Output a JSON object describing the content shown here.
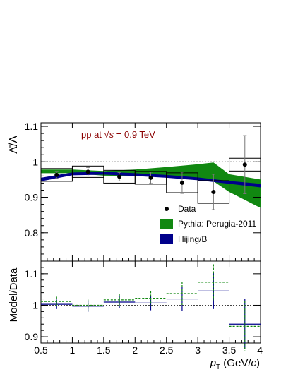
{
  "chart_data": [
    {
      "type": "scatter",
      "ylabel": "Λ̄/Λ",
      "annotation": "pp at √s = 0.9 TeV",
      "xlim": [
        0.5,
        4.0
      ],
      "ylim": [
        0.72,
        1.11
      ],
      "yticks": [
        "0.8",
        "0.9",
        "1",
        "1.1"
      ],
      "reference_line": 1.0,
      "data": {
        "name": "Data",
        "x": [
          0.75,
          1.25,
          1.75,
          2.25,
          2.75,
          3.25,
          3.75
        ],
        "y": [
          0.963,
          0.972,
          0.958,
          0.955,
          0.941,
          0.915,
          0.992
        ],
        "stat_err": [
          0.01,
          0.012,
          0.012,
          0.016,
          0.03,
          0.05,
          0.082
        ],
        "sys_err": [
          0.018,
          0.016,
          0.018,
          0.018,
          0.028,
          0.032,
          0.018
        ]
      },
      "models": [
        {
          "name": "Pythia: Perugia-2011",
          "color": "#118811",
          "x": [
            0.5,
            1.0,
            1.5,
            2.0,
            2.5,
            3.0,
            3.25,
            3.5,
            4.0
          ],
          "low": [
            0.968,
            0.968,
            0.961,
            0.96,
            0.958,
            0.95,
            0.945,
            0.915,
            0.87
          ],
          "high": [
            0.978,
            0.978,
            0.974,
            0.978,
            0.985,
            0.993,
            0.998,
            0.965,
            0.95
          ]
        },
        {
          "name": "Hijing/B",
          "color": "#00008b",
          "x": [
            0.5,
            1.0,
            1.5,
            2.0,
            2.5,
            3.0,
            3.5,
            4.0
          ],
          "low": [
            0.945,
            0.962,
            0.964,
            0.96,
            0.955,
            0.948,
            0.938,
            0.928
          ],
          "high": [
            0.955,
            0.97,
            0.972,
            0.968,
            0.963,
            0.956,
            0.946,
            0.938
          ]
        }
      ]
    },
    {
      "type": "scatter",
      "ylabel": "Model/Data",
      "xlabel": "p_T (GeV/c)",
      "xlim": [
        0.5,
        4.0
      ],
      "ylim": [
        0.88,
        1.14
      ],
      "xticks": [
        "0.5",
        "1",
        "1.5",
        "2",
        "2.5",
        "3",
        "3.5",
        "4"
      ],
      "yticks": [
        "0.9",
        "1",
        "1.1"
      ],
      "reference_line": 1.0,
      "series": [
        {
          "name": "Hijing/B",
          "color": "#00008b",
          "x": [
            0.75,
            1.25,
            1.75,
            2.25,
            2.75,
            3.25,
            3.75
          ],
          "y": [
            1.003,
            0.997,
            1.01,
            1.007,
            1.02,
            1.045,
            0.94
          ],
          "err": [
            0.015,
            0.018,
            0.02,
            0.023,
            0.038,
            0.057,
            0.08
          ]
        },
        {
          "name": "Pythia: Perugia-2011",
          "color": "#118811",
          "x": [
            0.75,
            1.25,
            1.75,
            2.25,
            2.75,
            3.25,
            3.75
          ],
          "y": [
            1.012,
            1.0,
            1.017,
            1.022,
            1.037,
            1.073,
            0.933
          ],
          "err": [
            0.015,
            0.018,
            0.02,
            0.023,
            0.038,
            0.057,
            0.08
          ]
        }
      ]
    }
  ],
  "legend": {
    "data_label": "Data",
    "pythia_label": "Pythia: Perugia-2011",
    "hijing_label": "Hijing/B"
  },
  "labels": {
    "annotation_prefix": "pp at ",
    "annotation_sqrt": "√",
    "annotation_s": "s",
    "annotation_suffix": " = 0.9 TeV",
    "top_ylabel": "Λ̄/Λ",
    "bottom_ylabel": "Model/Data",
    "xlabel_p": "p",
    "xlabel_sub": "T",
    "xlabel_unit_open": " (GeV/",
    "xlabel_c": "c",
    "xlabel_close": ")"
  }
}
